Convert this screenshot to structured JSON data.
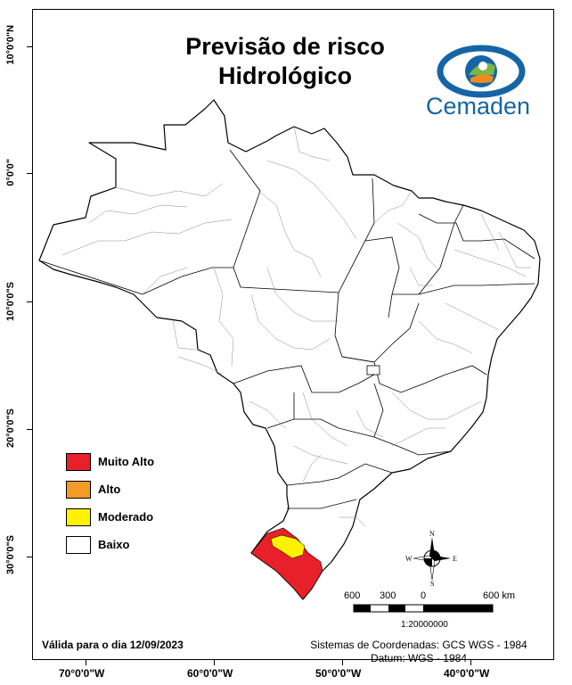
{
  "title": {
    "line1": "Previsão de risco",
    "line2": "Hidrológico"
  },
  "logo": {
    "text": "Cemaden",
    "icon": "eye-logo-icon",
    "colors": {
      "blue": "#1565a6",
      "green": "#7ab648",
      "orange": "#f08a1c"
    }
  },
  "legend": {
    "items": [
      {
        "label": "Muito Alto",
        "color": "#e8202a"
      },
      {
        "label": "Alto",
        "color": "#f49a27"
      },
      {
        "label": "Moderado",
        "color": "#fff200"
      },
      {
        "label": "Baixo",
        "color": "#ffffff"
      }
    ]
  },
  "axes": {
    "latitude_labels": [
      "10°0'0\"N",
      "0°0'0\"",
      "10°0'0\"S",
      "20°0'0\"S",
      "30°0'0\"S"
    ],
    "longitude_labels": [
      "70°0'0\"W",
      "60°0'0\"W",
      "50°0'0\"W",
      "40°0'0\"W"
    ]
  },
  "validity": "Válida para o dia 12/09/2023",
  "coordinate_system": {
    "line1": "Sistemas de Coordenadas: GCS WGS - 1984",
    "line2": "Datum: WGS - 1984"
  },
  "scale": {
    "labels": [
      "600",
      "300",
      "0",
      "600 km"
    ],
    "ratio": "1:20000000"
  },
  "compass": {
    "n": "N",
    "s": "S",
    "e": "E",
    "w": "W"
  }
}
